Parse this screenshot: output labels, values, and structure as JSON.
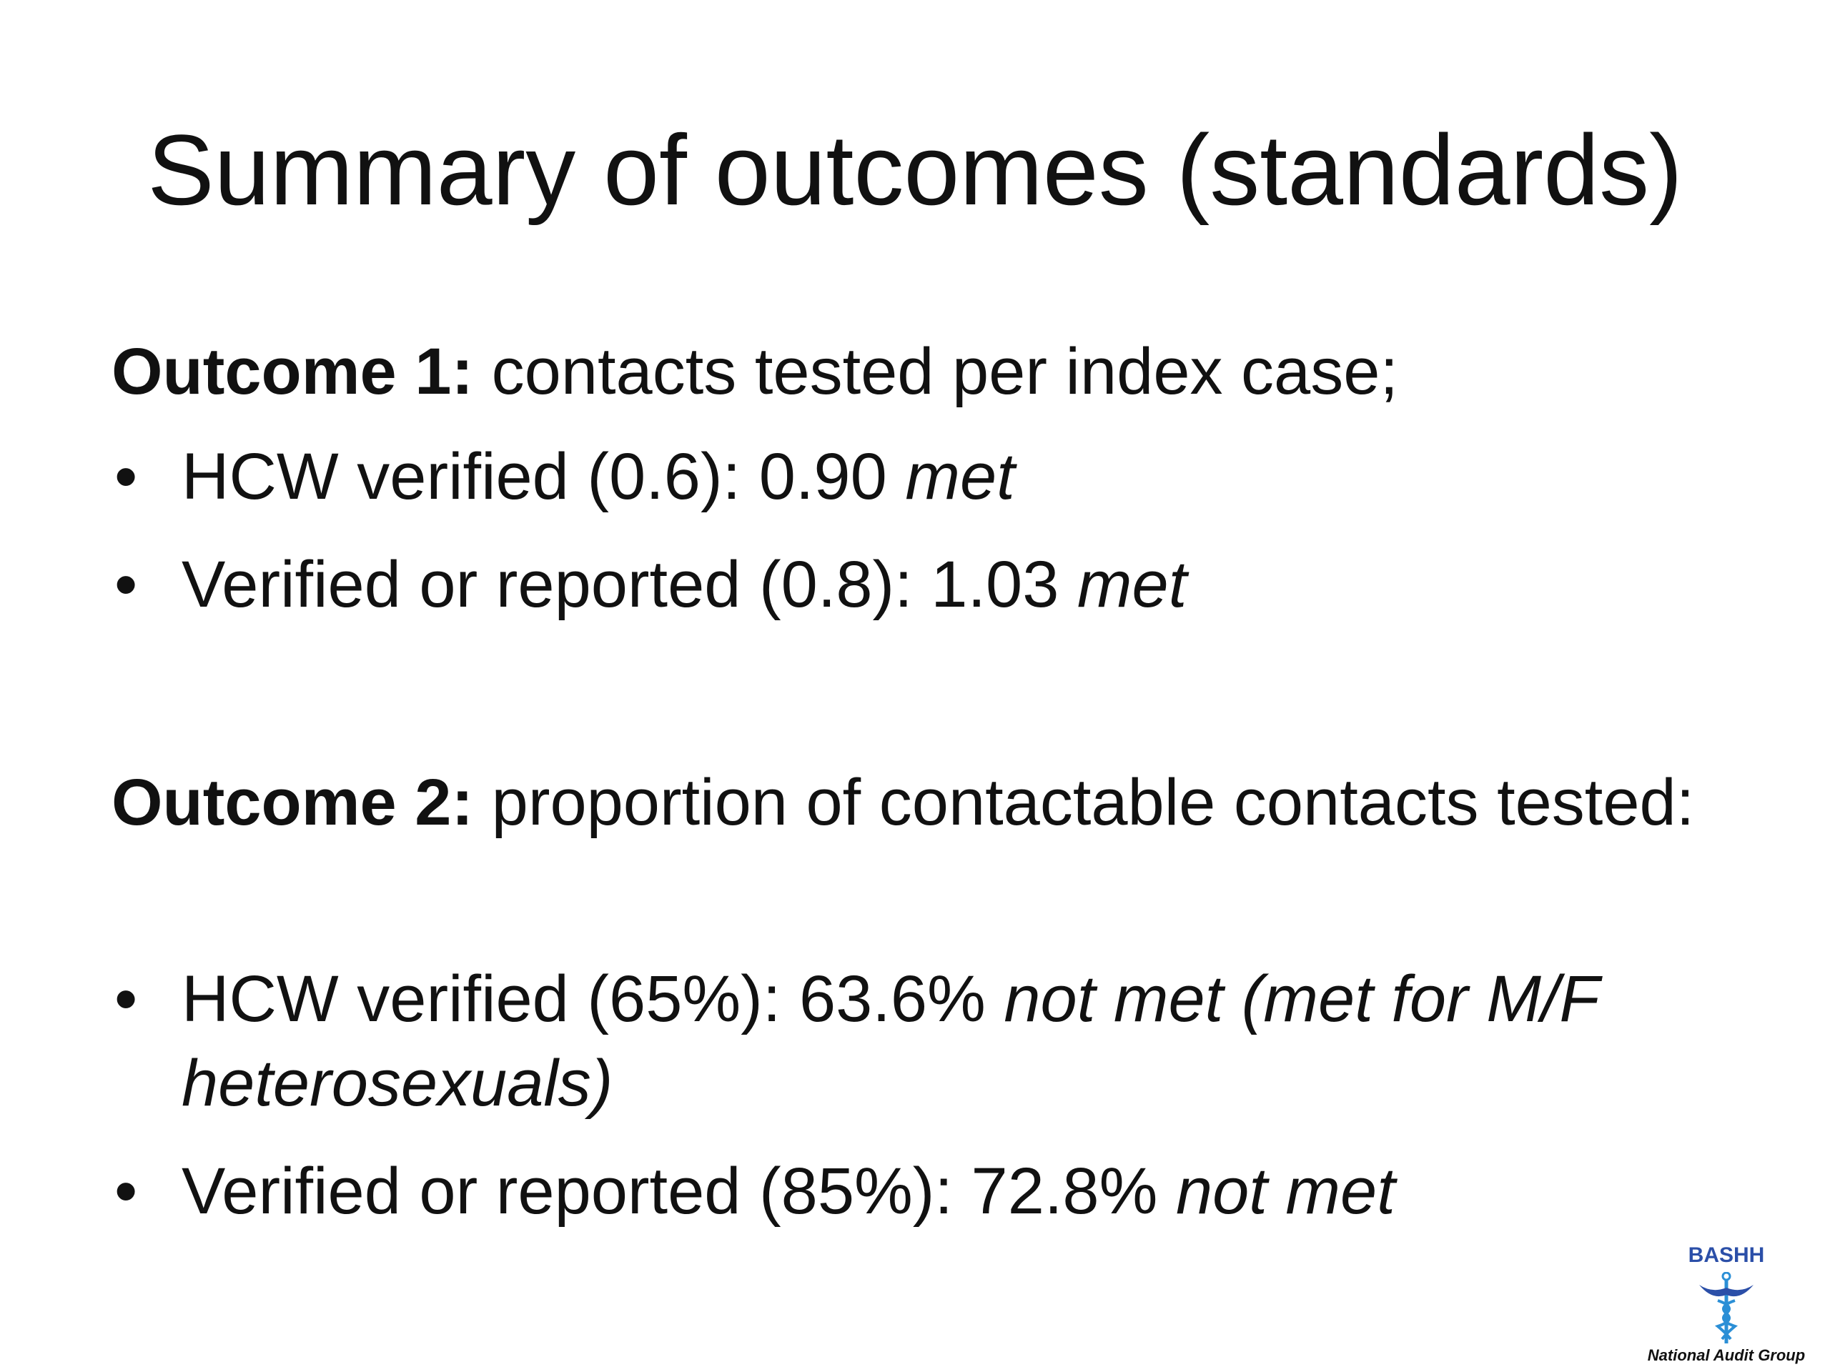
{
  "title": "Summary of outcomes (standards)",
  "sections": [
    {
      "heading": "Outcome 1:",
      "text": "contacts tested per index case;",
      "bullets": [
        {
          "text": "HCW verified (0.6): 0.90",
          "emphasis": "met"
        },
        {
          "text": "Verified or reported (0.8): 1.03",
          "emphasis": "met"
        }
      ]
    },
    {
      "heading": "Outcome 2:",
      "text": "proportion of contactable contacts tested:",
      "bullets": [
        {
          "text": "HCW verified (65%): 63.6%",
          "emphasis": "not met (met for M/F heterosexuals)"
        },
        {
          "text": "Verified or reported (85%): 72.8%",
          "emphasis": "not met"
        }
      ]
    }
  ],
  "logo": {
    "name": "BASHH",
    "subtitle": "National Audit Group"
  }
}
